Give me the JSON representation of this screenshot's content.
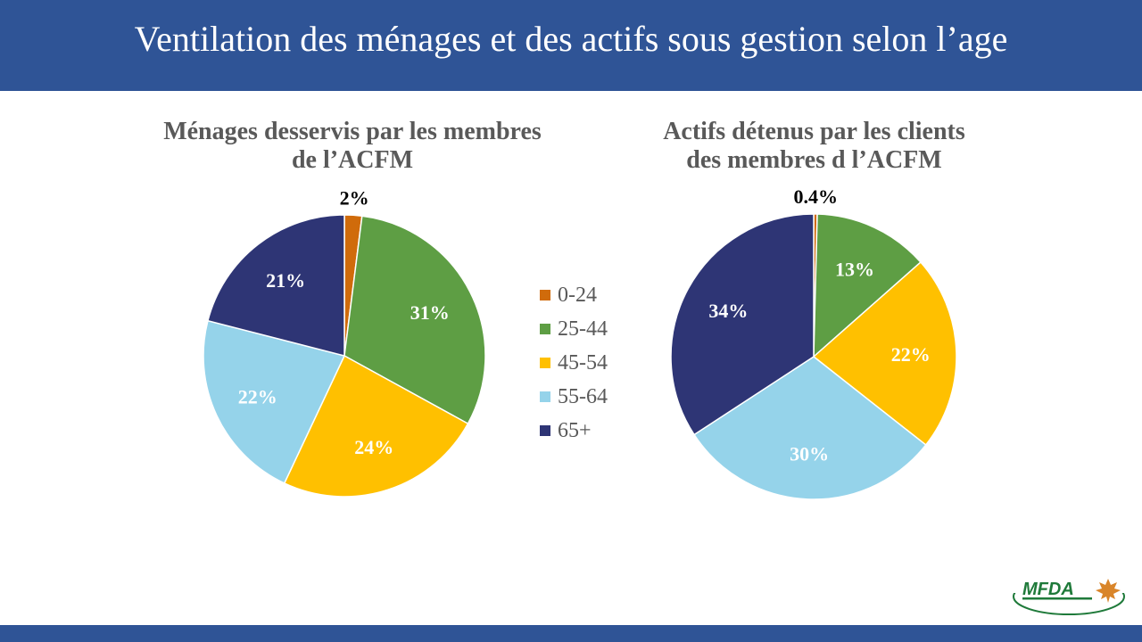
{
  "title": "Ventilation des ménages et des actifs sous gestion selon l’age",
  "logo_text": "MFDA",
  "chart_data": [
    {
      "type": "pie",
      "title_lines": [
        "Ménages desservis par les membres",
        "de l’ACFM"
      ],
      "categories": [
        "0-24",
        "25-44",
        "45-54",
        "55-64",
        "65+"
      ],
      "values": [
        2,
        31,
        24,
        22,
        21
      ],
      "labels": [
        "2%",
        "31%",
        "24%",
        "22%",
        "21%"
      ],
      "legend": "center-right"
    },
    {
      "type": "pie",
      "title_lines": [
        "Actifs détenus par les clients",
        "des membres d l’ACFM"
      ],
      "categories": [
        "0-24",
        "25-44",
        "45-54",
        "55-64",
        "65+"
      ],
      "values": [
        0.4,
        13,
        22,
        30,
        34
      ],
      "labels": [
        "0.4%",
        "13%",
        "22%",
        "30%",
        "34%"
      ]
    }
  ],
  "legend": [
    "0-24",
    "25-44",
    "45-54",
    "55-64",
    "65+"
  ],
  "colors": [
    "#d06b0b",
    "#5e9e44",
    "#ffc000",
    "#95d3ea",
    "#2e3575"
  ]
}
